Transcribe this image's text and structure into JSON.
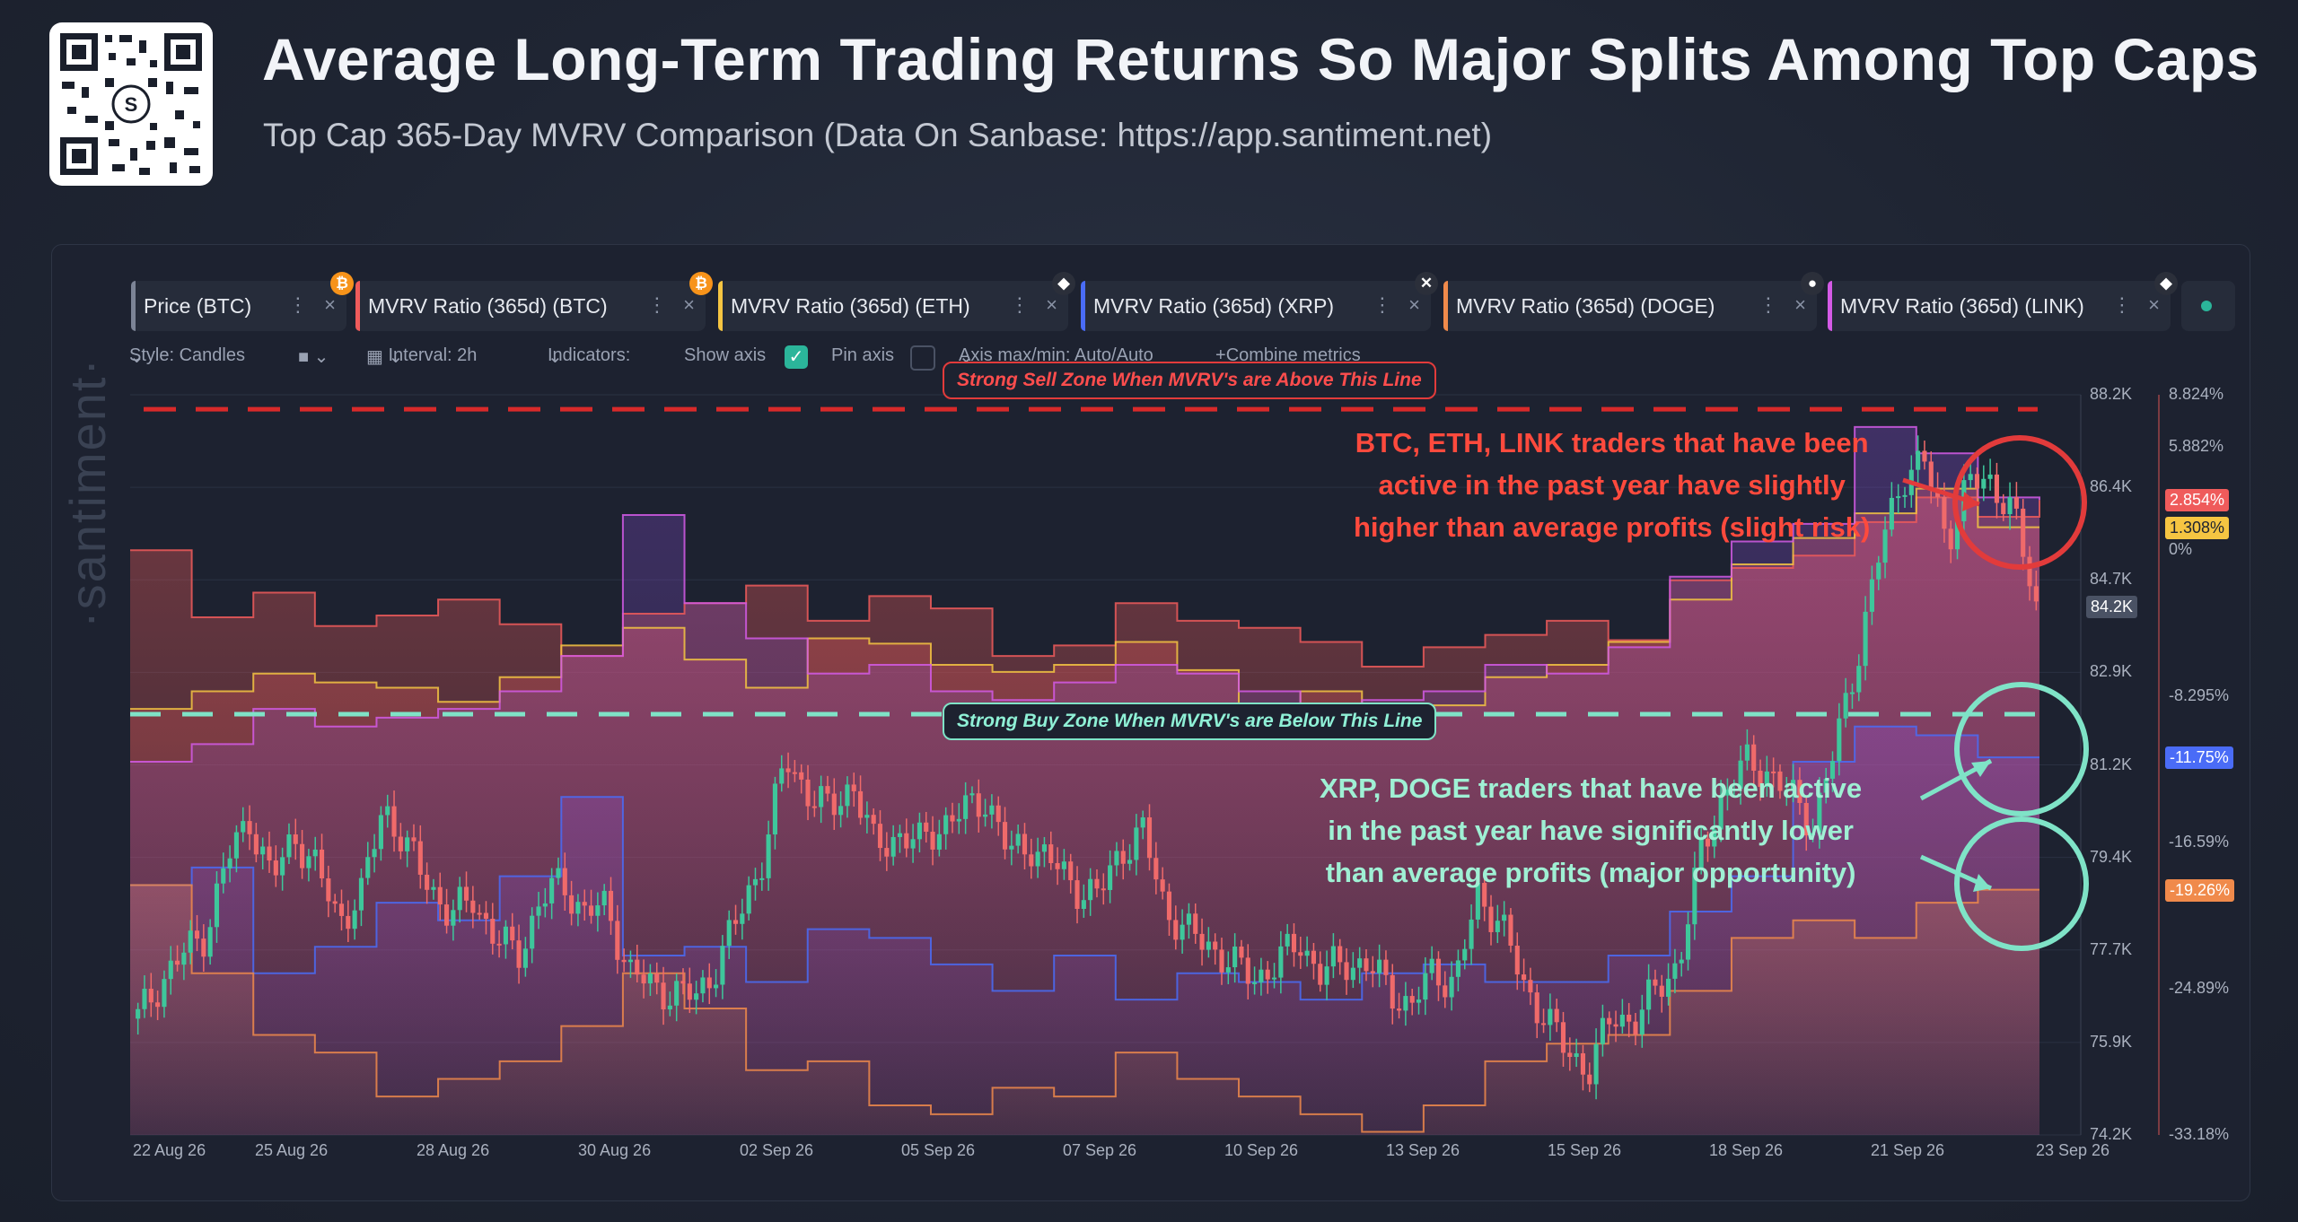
{
  "header": {
    "title": "Average Long-Term Trading Returns So Major Splits Among Top Caps",
    "subtitle": "Top Cap 365-Day MVRV Comparison (Data On Sanbase: https://app.santiment.net)"
  },
  "chips": [
    {
      "label": "Price (BTC)",
      "color": "#7c8496",
      "icon": "bitcoin-icon",
      "badge_color": "#f7931a",
      "badge": "₿"
    },
    {
      "label": "MVRV Ratio (365d) (BTC)",
      "color": "#ef5b5b",
      "icon": "bitcoin-icon",
      "badge_color": "#f7931a",
      "badge": "₿"
    },
    {
      "label": "MVRV Ratio (365d) (ETH)",
      "color": "#f5c542",
      "icon": "ethereum-icon",
      "badge_color": "#2b2f3a",
      "badge": "◆"
    },
    {
      "label": "MVRV Ratio (365d) (XRP)",
      "color": "#4a6cf7",
      "icon": "xrp-icon",
      "badge_color": "#2b2f3a",
      "badge": "✕"
    },
    {
      "label": "MVRV Ratio (365d) (DOGE)",
      "color": "#f08a4b",
      "icon": "lock-icon",
      "badge_color": "#2b2f3a",
      "badge": "●"
    },
    {
      "label": "MVRV Ratio (365d) (LINK)",
      "color": "#d45ae6",
      "icon": "chainlink-icon",
      "badge_color": "#2b2f3a",
      "badge": "◆"
    }
  ],
  "toolbar": {
    "style": "Style: Candles",
    "interval": "Interval: 2h",
    "indicators": "Indicators:",
    "show_axis": "Show axis",
    "pin_axis": "Pin axis",
    "axis_minmax": "Axis max/min: Auto/Auto",
    "combine": "Combine metrics"
  },
  "zones": {
    "sell": "Strong Sell Zone When MVRV's are Above This Line",
    "buy": "Strong Buy Zone When MVRV's are Below This Line"
  },
  "annotations": {
    "top": [
      "BTC, ETH, LINK traders that have been",
      "active in the past year have slightly",
      "higher than average profits (slight risk)"
    ],
    "bottom": [
      "XRP, DOGE traders that have been active",
      "in the past year have significantly lower",
      "than average profits (major opportunity)"
    ]
  },
  "watermark": "·santiment·",
  "chart_data": {
    "type": "line",
    "x_ticks": [
      "22 Aug 26",
      "25 Aug 26",
      "28 Aug 26",
      "30 Aug 26",
      "02 Sep 26",
      "05 Sep 26",
      "07 Sep 26",
      "10 Sep 26",
      "13 Sep 26",
      "15 Sep 26",
      "18 Sep 26",
      "21 Sep 26",
      "23 Sep 26"
    ],
    "price_axis": {
      "ticks": [
        "88.2K",
        "86.4K",
        "84.7K",
        "82.9K",
        "81.2K",
        "79.4K",
        "77.7K",
        "75.9K",
        "74.2K"
      ],
      "range": [
        74.2,
        88.2
      ],
      "current": "84.2K"
    },
    "mvrv_axis": {
      "ticks": [
        "8.824%",
        "5.882%",
        "0%",
        "-8.295%",
        "-16.59%",
        "-24.89%",
        "-33.18%"
      ],
      "range": [
        -33.18,
        8.824
      ]
    },
    "price_btc_k": [
      76.4,
      77.1,
      77.6,
      78.0,
      79.4,
      80.2,
      79.0,
      79.9,
      79.2,
      78.3,
      78.7,
      80.5,
      79.6,
      79.0,
      78.3,
      78.7,
      77.9,
      77.6,
      78.6,
      79.0,
      78.4,
      78.5,
      77.3,
      77.0,
      76.9,
      76.8,
      77.5,
      78.4,
      79.5,
      81.3,
      80.7,
      80.3,
      80.9,
      79.6,
      79.9,
      79.7,
      80.1,
      80.3,
      80.6,
      79.5,
      79.7,
      79.3,
      78.9,
      78.7,
      79.6,
      79.9,
      78.5,
      78.0,
      77.8,
      77.4,
      77.2,
      77.4,
      77.9,
      77.2,
      77.5,
      77.4,
      77.0,
      76.6,
      77.3,
      77.1,
      78.7,
      78.3,
      77.0,
      76.5,
      75.7,
      75.5,
      76.4,
      76.4,
      76.9,
      77.5,
      79.5,
      80.7,
      81.2,
      81.1,
      80.6,
      80.1,
      81.5,
      83.3,
      85.2,
      86.7,
      86.9,
      85.5,
      86.5,
      86.6,
      85.9,
      84.2
    ],
    "series": [
      {
        "name": "MVRV Ratio (365d) (BTC)",
        "color": "#ef5b5b",
        "values": [
          0.0,
          0.0,
          -3.8,
          -3.8,
          -2.4,
          -2.4,
          -4.3,
          -4.3,
          -3.7,
          -3.7,
          -2.8,
          -2.8,
          -4.2,
          -4.2,
          -6.0,
          -6.0,
          -3.6,
          -3.6,
          -3.0,
          -3.0,
          -2.0,
          -2.0,
          -4.0,
          -4.0,
          -2.6,
          -2.6,
          -3.3,
          -3.3,
          -6.0,
          -6.0,
          -5.4,
          -5.4,
          -3.0,
          -3.0,
          -4.0,
          -4.0,
          -4.4,
          -4.4,
          -5.2,
          -5.2,
          -6.6,
          -6.6,
          -5.5,
          -5.5,
          -4.8,
          -4.8,
          -4.0,
          -4.0,
          -5.1,
          -5.1,
          -1.7,
          -1.7,
          -1.0,
          -1.0,
          -0.3,
          -0.3,
          1.6,
          1.6,
          3.0,
          3.0,
          1.9,
          1.9,
          2.854
        ]
      },
      {
        "name": "MVRV Ratio (365d) (ETH)",
        "color": "#f5c542",
        "values": [
          -9.0,
          -9.0,
          -8.0,
          -8.0,
          -7.0,
          -7.0,
          -7.5,
          -7.5,
          -7.8,
          -7.8,
          -8.6,
          -8.6,
          -7.2,
          -7.2,
          -5.4,
          -5.4,
          -4.4,
          -4.4,
          -6.2,
          -6.2,
          -7.8,
          -7.8,
          -5.0,
          -5.0,
          -5.3,
          -5.3,
          -6.5,
          -6.5,
          -6.9,
          -6.9,
          -6.5,
          -6.5,
          -5.2,
          -5.2,
          -6.8,
          -6.8,
          -9.0,
          -9.0,
          -8.0,
          -8.0,
          -9.5,
          -9.5,
          -8.8,
          -8.8,
          -7.2,
          -7.2,
          -6.5,
          -6.5,
          -5.2,
          -5.2,
          -2.8,
          -2.8,
          -0.8,
          -0.8,
          0.7,
          0.7,
          2.1,
          2.1,
          3.5,
          3.5,
          1.308,
          1.308,
          1.308
        ]
      },
      {
        "name": "MVRV Ratio (365d) (LINK)",
        "color": "#d45ae6",
        "values": [
          -12.0,
          -12.0,
          -11.0,
          -11.0,
          -9.0,
          -9.0,
          -10.0,
          -10.0,
          -9.5,
          -9.5,
          -9.0,
          -9.0,
          -8.0,
          -8.0,
          -6.0,
          -6.0,
          2.0,
          2.0,
          -3.0,
          -3.0,
          -5.0,
          -5.0,
          -7.0,
          -7.0,
          -6.5,
          -6.5,
          -8.0,
          -8.0,
          -8.5,
          -8.5,
          -7.5,
          -7.5,
          -6.5,
          -6.5,
          -7.0,
          -7.0,
          -8.0,
          -8.0,
          -9.5,
          -9.5,
          -8.5,
          -8.5,
          -8.0,
          -8.0,
          -6.5,
          -6.5,
          -7.0,
          -7.0,
          -5.5,
          -5.5,
          -1.5,
          -1.5,
          0.5,
          0.5,
          1.5,
          1.5,
          7.0,
          7.0,
          5.5,
          5.5,
          3.0,
          3.0,
          2.854
        ]
      },
      {
        "name": "MVRV Ratio (365d) (XRP)",
        "color": "#4a6cf7",
        "values": [
          -19.0,
          -19.0,
          -18.0,
          -18.0,
          -24.0,
          -24.0,
          -22.5,
          -22.5,
          -20.0,
          -20.0,
          -21.0,
          -21.0,
          -18.5,
          -18.5,
          -14.0,
          -14.0,
          -23.0,
          -23.0,
          -22.5,
          -22.5,
          -24.5,
          -24.5,
          -21.5,
          -21.5,
          -22.0,
          -22.0,
          -23.5,
          -23.5,
          -25.0,
          -25.0,
          -23.0,
          -23.0,
          -25.5,
          -25.5,
          -24.0,
          -24.0,
          -24.5,
          -24.5,
          -25.5,
          -25.5,
          -24.0,
          -24.0,
          -23.5,
          -23.5,
          -24.5,
          -24.5,
          -24.5,
          -24.5,
          -23.0,
          -23.0,
          -20.5,
          -20.5,
          -18.5,
          -18.5,
          -12.0,
          -12.0,
          -10.0,
          -10.0,
          -10.5,
          -10.5,
          -11.75,
          -11.75,
          -11.75
        ]
      },
      {
        "name": "MVRV Ratio (365d) (DOGE)",
        "color": "#f08a4b",
        "values": [
          -19.0,
          -19.0,
          -24.0,
          -24.0,
          -27.5,
          -27.5,
          -28.5,
          -28.5,
          -31.0,
          -31.0,
          -30.0,
          -30.0,
          -29.0,
          -29.0,
          -27.0,
          -27.0,
          -24.0,
          -24.0,
          -26.0,
          -26.0,
          -29.5,
          -29.5,
          -29.0,
          -29.0,
          -31.5,
          -31.5,
          -32.0,
          -32.0,
          -30.5,
          -30.5,
          -31.0,
          -31.0,
          -28.5,
          -28.5,
          -30.0,
          -30.0,
          -31.0,
          -31.0,
          -32.0,
          -32.0,
          -33.0,
          -33.0,
          -31.5,
          -31.5,
          -29.0,
          -29.0,
          -28.0,
          -28.0,
          -27.5,
          -27.5,
          -25.0,
          -25.0,
          -22.0,
          -22.0,
          -21.0,
          -21.0,
          -22.0,
          -22.0,
          -20.0,
          -20.0,
          -19.26,
          -19.26,
          -19.26
        ]
      }
    ],
    "end_labels": [
      {
        "text": "2.854%",
        "color": "#ef5b5b",
        "value": 2.854
      },
      {
        "text": "1.308%",
        "color": "#f5c542",
        "value": 1.308
      },
      {
        "text": "-11.75%",
        "color": "#4a6cf7",
        "value": -11.75
      },
      {
        "text": "-19.26%",
        "color": "#f08a4b",
        "value": -19.26
      }
    ],
    "sell_line_pct": 8.0,
    "buy_line_pct": -9.3
  }
}
